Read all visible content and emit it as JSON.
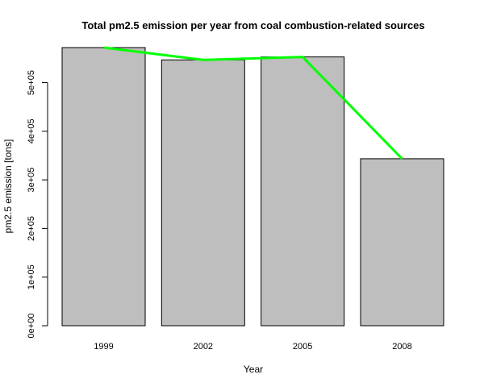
{
  "chart_data": {
    "type": "bar",
    "title": "Total pm2.5 emission per year from coal combustion-related sources",
    "xlabel": "Year",
    "ylabel": "pm2.5 emission [tons]",
    "categories": [
      "1999",
      "2002",
      "2005",
      "2008"
    ],
    "values": [
      572126,
      546789,
      552881,
      343432
    ],
    "ylim": [
      0,
      572126
    ],
    "yticks": [
      0,
      100000,
      200000,
      300000,
      400000,
      500000
    ],
    "ytick_labels": [
      "0e+00",
      "1e+05",
      "2e+05",
      "3e+05",
      "4e+05",
      "5e+05"
    ],
    "bar_color": "#bebebe",
    "line_color": "#00ff00",
    "overlay": "line connecting bar tops (green)",
    "grid": false,
    "legend": "none"
  }
}
